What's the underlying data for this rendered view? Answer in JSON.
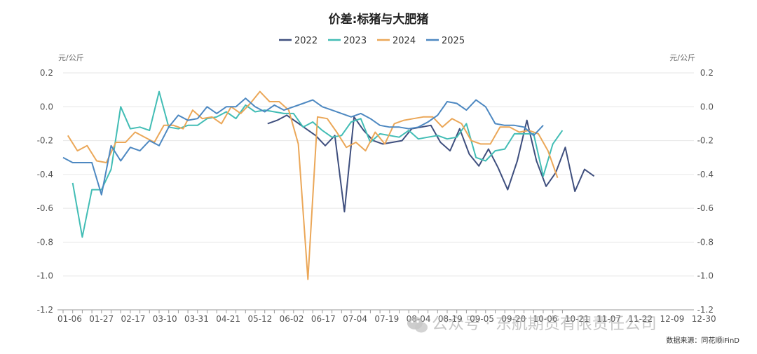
{
  "chart_data": {
    "type": "line",
    "title": "价差:标猪与大肥猪",
    "y_unit_left": "元/公斤",
    "y_unit_right": "元/公斤",
    "ylim": [
      -1.2,
      0.2
    ],
    "yticks": [
      -1.2,
      -1.0,
      -0.8,
      -0.6,
      -0.4,
      -0.2,
      0.0,
      0.2
    ],
    "ytick_labels": [
      "-1.2",
      "-1.0",
      "-0.8",
      "-0.6",
      "-0.4",
      "-0.2",
      "0.0",
      "0.2"
    ],
    "x_count": 53,
    "x_ticks": [
      {
        "i": 0,
        "label": "01-06"
      },
      {
        "i": 3,
        "label": "01-27"
      },
      {
        "i": 6,
        "label": "02-17"
      },
      {
        "i": 9,
        "label": "03-10"
      },
      {
        "i": 12,
        "label": "03-31"
      },
      {
        "i": 15,
        "label": "04-21"
      },
      {
        "i": 18,
        "label": "05-12"
      },
      {
        "i": 21,
        "label": "06-02"
      },
      {
        "i": 24,
        "label": "06-17"
      },
      {
        "i": 27,
        "label": "07-04"
      },
      {
        "i": 30,
        "label": "07-19"
      },
      {
        "i": 33,
        "label": "08-04"
      },
      {
        "i": 36,
        "label": "08-19"
      },
      {
        "i": 39,
        "label": "09-05"
      },
      {
        "i": 42,
        "label": "09-20"
      },
      {
        "i": 45,
        "label": "10-06"
      },
      {
        "i": 48,
        "label": "10-21"
      },
      {
        "i": 51,
        "label": "11-07"
      },
      {
        "i": 54,
        "label": "11-22"
      },
      {
        "i": 57,
        "label": "12-09"
      },
      {
        "i": 60,
        "label": "12-30"
      }
    ],
    "grid": true,
    "legend_position": "top-center",
    "series": [
      {
        "name": "2022",
        "color": "#3f4f7e",
        "points": [
          [
            21.3,
            -0.1
          ],
          [
            22.3,
            -0.08
          ],
          [
            23.3,
            -0.05
          ],
          [
            24.3,
            -0.09
          ],
          [
            25.3,
            -0.13
          ],
          [
            26.3,
            -0.17
          ],
          [
            27.3,
            -0.23
          ],
          [
            28.3,
            -0.17
          ],
          [
            29.3,
            -0.62
          ],
          [
            30.3,
            -0.06
          ],
          [
            31.3,
            -0.14
          ],
          [
            32.3,
            -0.2
          ],
          [
            33.3,
            -0.22
          ],
          [
            34.3,
            -0.21
          ],
          [
            35.3,
            -0.2
          ],
          [
            36.3,
            -0.13
          ],
          [
            37.3,
            -0.12
          ],
          [
            38.3,
            -0.11
          ],
          [
            39.3,
            -0.21
          ],
          [
            40.3,
            -0.26
          ],
          [
            41.3,
            -0.13
          ],
          [
            42.3,
            -0.28
          ],
          [
            43.3,
            -0.35
          ],
          [
            44.3,
            -0.25
          ],
          [
            45.3,
            -0.36
          ],
          [
            46.3,
            -0.49
          ],
          [
            47.3,
            -0.32
          ],
          [
            48.3,
            -0.08
          ],
          [
            49.3,
            -0.32
          ],
          [
            50.3,
            -0.47
          ],
          [
            51.3,
            -0.39
          ],
          [
            52.3,
            -0.24
          ],
          [
            53.3,
            -0.5
          ],
          [
            54.3,
            -0.37
          ],
          [
            55.3,
            -0.41
          ]
        ]
      },
      {
        "name": "2023",
        "color": "#42bdb5",
        "points": [
          [
            1,
            -0.45
          ],
          [
            2,
            -0.77
          ],
          [
            3,
            -0.49
          ],
          [
            4,
            -0.49
          ],
          [
            5,
            -0.37
          ],
          [
            6,
            0.0
          ],
          [
            7,
            -0.13
          ],
          [
            8,
            -0.12
          ],
          [
            9,
            -0.14
          ],
          [
            10,
            0.09
          ],
          [
            11,
            -0.12
          ],
          [
            12,
            -0.13
          ],
          [
            13,
            -0.11
          ],
          [
            14,
            -0.11
          ],
          [
            15,
            -0.07
          ],
          [
            16,
            -0.06
          ],
          [
            17,
            -0.03
          ],
          [
            18,
            -0.07
          ],
          [
            19,
            0.01
          ],
          [
            20,
            -0.03
          ],
          [
            21,
            -0.02
          ],
          [
            22,
            -0.03
          ],
          [
            23,
            -0.04
          ],
          [
            24,
            -0.04
          ],
          [
            25,
            -0.12
          ],
          [
            26,
            -0.09
          ],
          [
            27,
            -0.14
          ],
          [
            28,
            -0.18
          ],
          [
            29,
            -0.17
          ],
          [
            30,
            -0.09
          ],
          [
            31,
            -0.07
          ],
          [
            32,
            -0.21
          ],
          [
            33,
            -0.16
          ],
          [
            34,
            -0.17
          ],
          [
            35,
            -0.18
          ],
          [
            36,
            -0.14
          ],
          [
            37,
            -0.19
          ],
          [
            38,
            -0.18
          ],
          [
            39,
            -0.17
          ],
          [
            40,
            -0.19
          ],
          [
            41,
            -0.18
          ],
          [
            42,
            -0.1
          ],
          [
            43,
            -0.3
          ],
          [
            44,
            -0.32
          ],
          [
            45,
            -0.26
          ],
          [
            46,
            -0.25
          ],
          [
            47,
            -0.16
          ],
          [
            48,
            -0.16
          ],
          [
            49,
            -0.16
          ],
          [
            50,
            -0.41
          ],
          [
            51,
            -0.22
          ],
          [
            52,
            -0.14
          ]
        ]
      },
      {
        "name": "2024",
        "color": "#eba758",
        "points": [
          [
            0.5,
            -0.17
          ],
          [
            1.5,
            -0.26
          ],
          [
            2.5,
            -0.23
          ],
          [
            3.5,
            -0.32
          ],
          [
            4.5,
            -0.33
          ],
          [
            5.5,
            -0.21
          ],
          [
            6.5,
            -0.21
          ],
          [
            7.5,
            -0.15
          ],
          [
            8.5,
            -0.18
          ],
          [
            9.5,
            -0.21
          ],
          [
            10.5,
            -0.11
          ],
          [
            11.5,
            -0.11
          ],
          [
            12.5,
            -0.13
          ],
          [
            13.5,
            -0.02
          ],
          [
            14.5,
            -0.07
          ],
          [
            15.5,
            -0.06
          ],
          [
            16.5,
            -0.1
          ],
          [
            17.5,
            0.0
          ],
          [
            18.5,
            -0.04
          ],
          [
            19.5,
            0.02
          ],
          [
            20.5,
            0.09
          ],
          [
            21.5,
            0.03
          ],
          [
            22.5,
            0.03
          ],
          [
            23.5,
            -0.02
          ],
          [
            24.5,
            -0.22
          ],
          [
            25.5,
            -1.02
          ],
          [
            26.5,
            -0.06
          ],
          [
            27.5,
            -0.07
          ],
          [
            28.5,
            -0.15
          ],
          [
            29.5,
            -0.24
          ],
          [
            30.5,
            -0.21
          ],
          [
            31.5,
            -0.26
          ],
          [
            32.5,
            -0.15
          ],
          [
            33.5,
            -0.22
          ],
          [
            34.5,
            -0.1
          ],
          [
            35.5,
            -0.08
          ],
          [
            36.5,
            -0.07
          ],
          [
            37.5,
            -0.06
          ],
          [
            38.5,
            -0.06
          ],
          [
            39.5,
            -0.12
          ],
          [
            40.5,
            -0.07
          ],
          [
            41.5,
            -0.1
          ],
          [
            42.5,
            -0.2
          ],
          [
            43.5,
            -0.22
          ],
          [
            44.5,
            -0.22
          ],
          [
            45.5,
            -0.12
          ],
          [
            46.5,
            -0.12
          ],
          [
            47.5,
            -0.15
          ],
          [
            48.5,
            -0.14
          ],
          [
            49.5,
            -0.16
          ],
          [
            50.5,
            -0.26
          ],
          [
            51.5,
            -0.42
          ]
        ]
      },
      {
        "name": "2025",
        "color": "#4d88c1",
        "points": [
          [
            0,
            -0.3
          ],
          [
            1,
            -0.33
          ],
          [
            2,
            -0.33
          ],
          [
            3,
            -0.33
          ],
          [
            4,
            -0.52
          ],
          [
            5,
            -0.23
          ],
          [
            6,
            -0.32
          ],
          [
            7,
            -0.24
          ],
          [
            8,
            -0.26
          ],
          [
            9,
            -0.2
          ],
          [
            10,
            -0.23
          ],
          [
            11,
            -0.12
          ],
          [
            12,
            -0.05
          ],
          [
            13,
            -0.08
          ],
          [
            14,
            -0.07
          ],
          [
            15,
            0.0
          ],
          [
            16,
            -0.04
          ],
          [
            17,
            0.0
          ],
          [
            18,
            0.0
          ],
          [
            19,
            0.05
          ],
          [
            20,
            0.0
          ],
          [
            21,
            -0.03
          ],
          [
            22,
            0.01
          ],
          [
            23,
            -0.02
          ],
          [
            24,
            0.0
          ],
          [
            25,
            0.02
          ],
          [
            26,
            0.04
          ],
          [
            27,
            0.0
          ],
          [
            28,
            -0.02
          ],
          [
            29,
            -0.04
          ],
          [
            30,
            -0.06
          ],
          [
            31,
            -0.04
          ],
          [
            32,
            -0.07
          ],
          [
            33,
            -0.11
          ],
          [
            34,
            -0.12
          ],
          [
            35,
            -0.12
          ],
          [
            36,
            -0.13
          ],
          [
            37,
            -0.12
          ],
          [
            38,
            -0.09
          ],
          [
            39,
            -0.05
          ],
          [
            40,
            0.03
          ],
          [
            41,
            0.02
          ],
          [
            42,
            -0.02
          ],
          [
            43,
            0.04
          ],
          [
            44,
            0.0
          ],
          [
            45,
            -0.1
          ],
          [
            46,
            -0.11
          ],
          [
            47,
            -0.11
          ],
          [
            48,
            -0.12
          ],
          [
            49,
            -0.17
          ],
          [
            50,
            -0.11
          ]
        ]
      }
    ]
  },
  "watermark": "公众号 · 东航期货有限责任公司",
  "source": "数据来源：同花顺iFinD"
}
